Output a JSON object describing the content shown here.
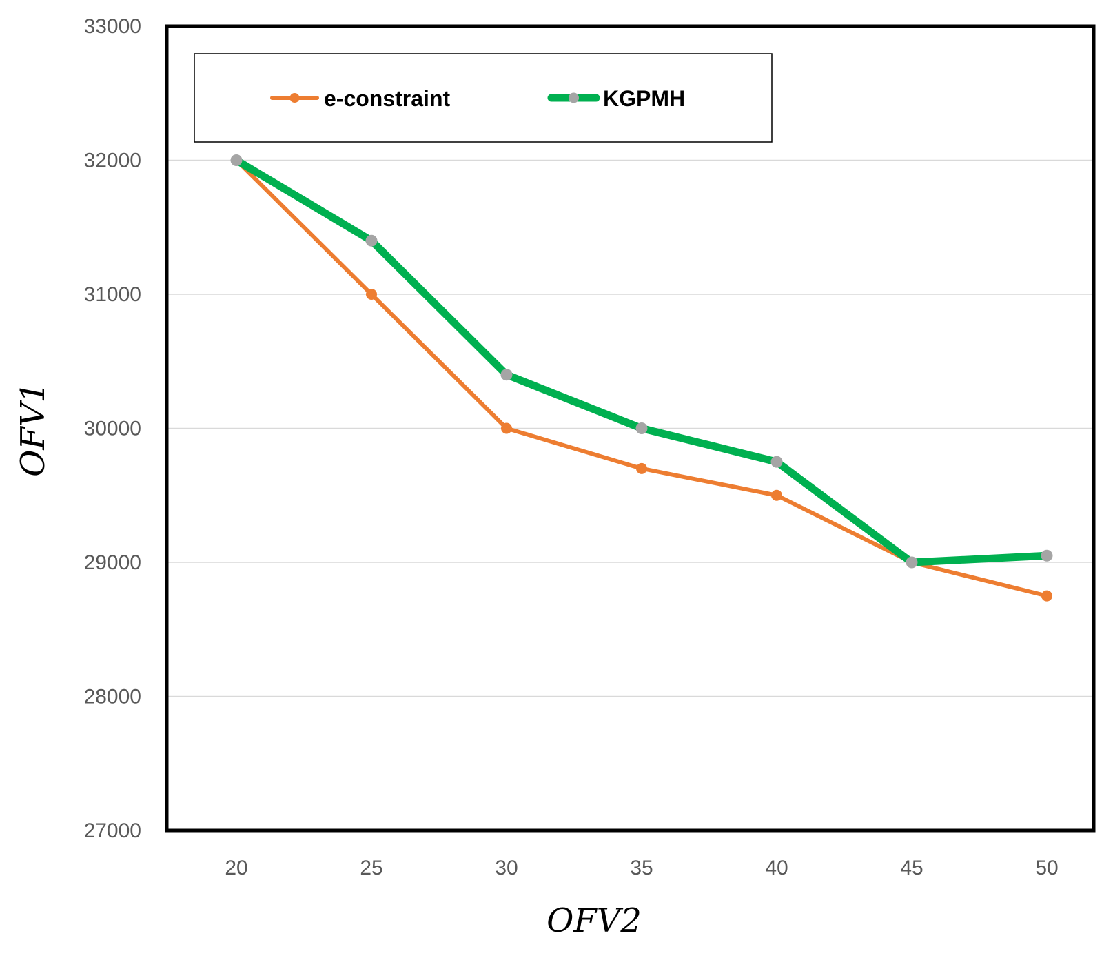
{
  "chart_data": {
    "type": "line",
    "title": "",
    "xlabel": "OFV2",
    "ylabel": "OFV1",
    "x": [
      20,
      25,
      30,
      35,
      40,
      45,
      50
    ],
    "x_tick_labels": [
      "20",
      "25",
      "30",
      "35",
      "40",
      "45",
      "50"
    ],
    "ylim": [
      27000,
      33000
    ],
    "y_tick_labels": [
      "27000",
      "28000",
      "29000",
      "30000",
      "31000",
      "32000",
      "33000"
    ],
    "grid": true,
    "legend_position": "top-left",
    "series": [
      {
        "name": "e-constraint",
        "color": "#ED7D31",
        "marker_color": "#ED7D31",
        "values": [
          32000,
          31000,
          30000,
          29700,
          29500,
          29000,
          28750
        ]
      },
      {
        "name": "KGPMH",
        "color": "#00B050",
        "marker_color": "#A5A5A5",
        "values": [
          32000,
          31400,
          30400,
          30000,
          29750,
          29000,
          29050
        ]
      }
    ]
  }
}
